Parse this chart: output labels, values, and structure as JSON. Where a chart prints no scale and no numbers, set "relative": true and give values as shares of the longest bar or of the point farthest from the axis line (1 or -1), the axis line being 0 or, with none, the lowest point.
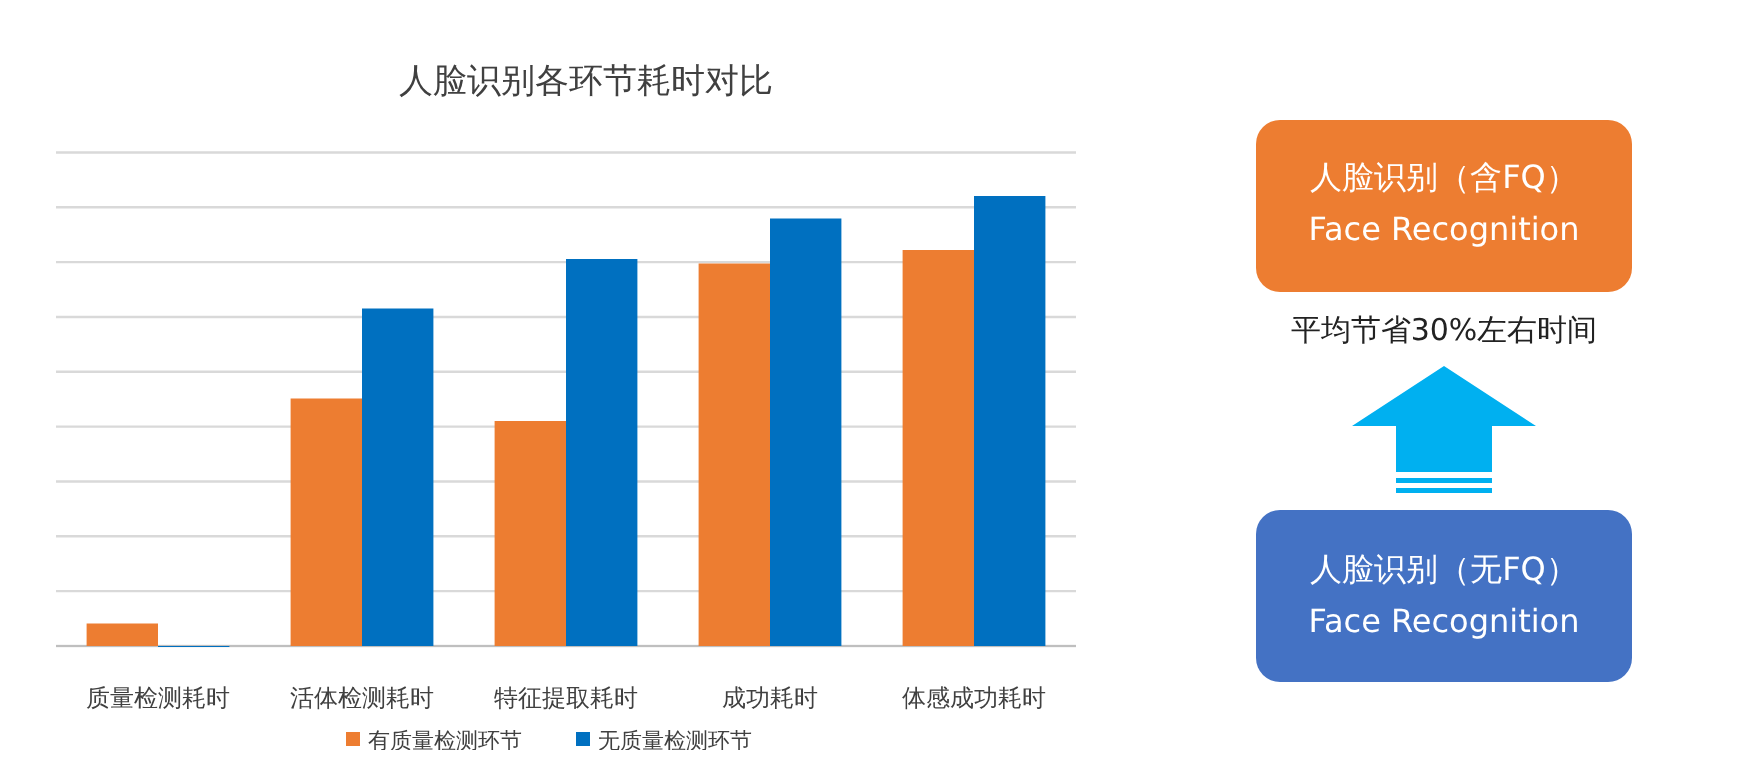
{
  "chart_data": [
    {
      "type": "bar",
      "title": "人脸识别各环节耗时对比",
      "relative": true,
      "grid": true,
      "legend": "bottom",
      "categories": [
        "质量检测耗时",
        "活体检测耗时",
        "特征提取耗时",
        "成功耗时",
        "体感成功耗时"
      ],
      "series": [
        {
          "name": "有质量检测环节",
          "color": "#ed7d31",
          "values": [
            0.05,
            0.55,
            0.5,
            0.85,
            0.88
          ]
        },
        {
          "name": "无质量检测环节",
          "color": "#0070c0",
          "values": [
            0,
            0.75,
            0.86,
            0.95,
            1
          ]
        }
      ]
    },
    {
      "type": "other",
      "annotations": [
        "人脸识别（含FQ）",
        "Face Recognition",
        "平均节省30%左右时间",
        "人脸识别（无FQ）",
        "Face Recognition"
      ]
    }
  ]
}
